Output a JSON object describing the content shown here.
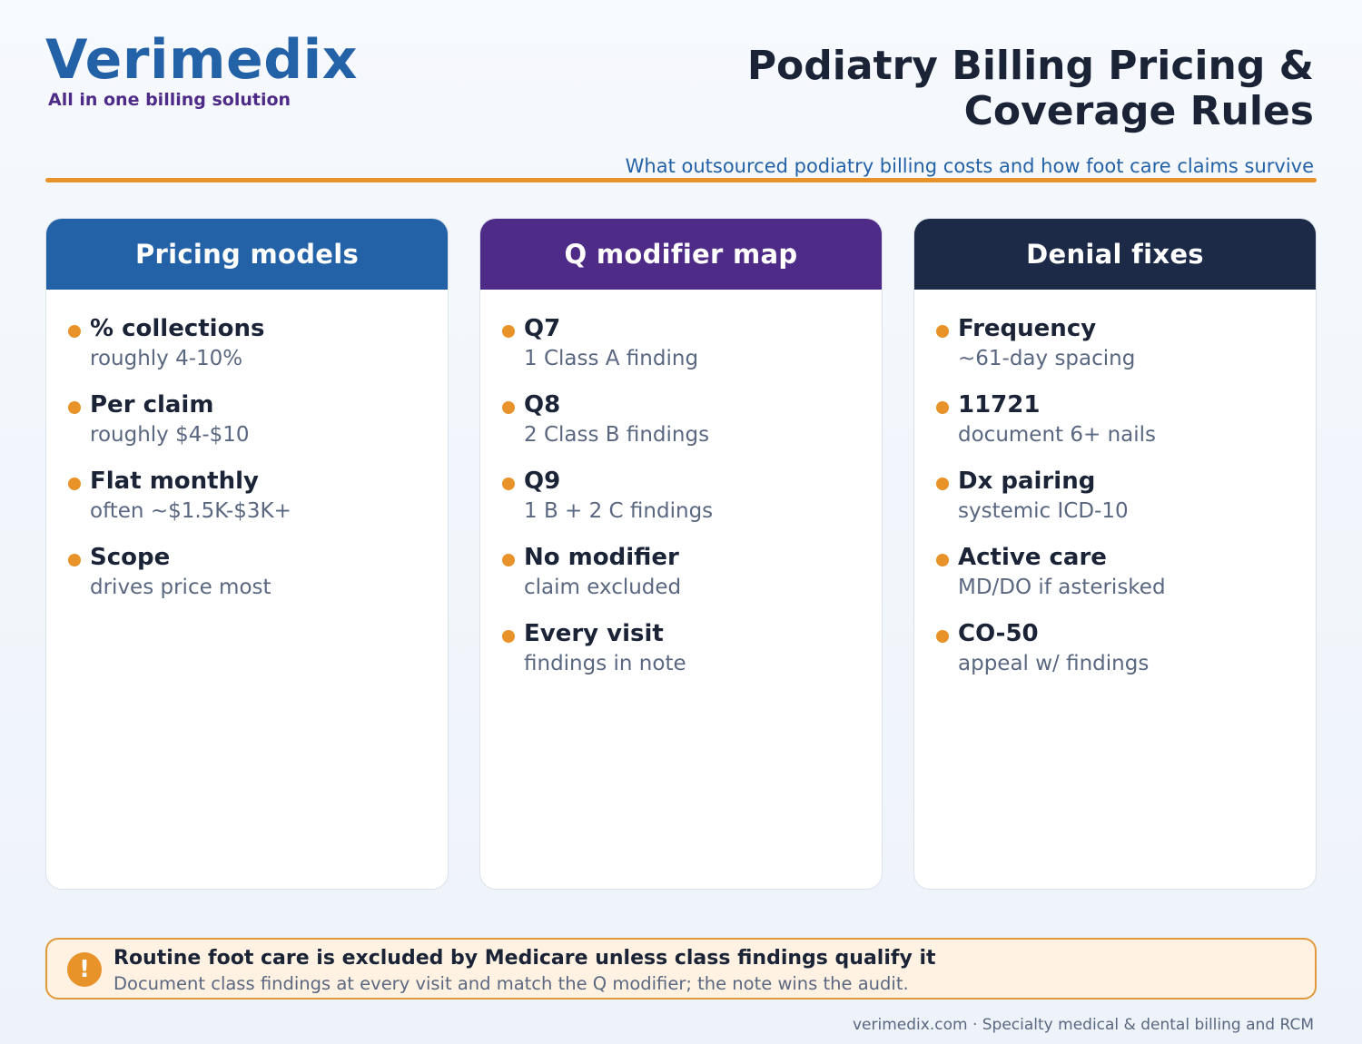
{
  "brand": {
    "name": "Verimedix",
    "tagline": "All in one billing solution"
  },
  "header": {
    "title_line1": "Podiatry Billing Pricing &",
    "title_line2": "Coverage Rules",
    "subtitle": "What outsourced podiatry billing costs and how foot care claims survive"
  },
  "colors": {
    "brand_blue": "#2462a8",
    "brand_purple": "#4e2b86",
    "navy": "#1c2a48",
    "accent_orange": "#e8922a"
  },
  "cards": [
    {
      "title": "Pricing models",
      "items": [
        {
          "label": "% collections",
          "detail": "roughly 4-10%"
        },
        {
          "label": "Per claim",
          "detail": "roughly $4-$10"
        },
        {
          "label": "Flat monthly",
          "detail": "often ~$1.5K-$3K+"
        },
        {
          "label": "Scope",
          "detail": "drives price most"
        }
      ]
    },
    {
      "title": "Q modifier map",
      "items": [
        {
          "label": "Q7",
          "detail": "1 Class A finding"
        },
        {
          "label": "Q8",
          "detail": "2 Class B findings"
        },
        {
          "label": "Q9",
          "detail": "1 B + 2 C findings"
        },
        {
          "label": "No modifier",
          "detail": "claim excluded"
        },
        {
          "label": "Every visit",
          "detail": "findings in note"
        }
      ]
    },
    {
      "title": "Denial fixes",
      "items": [
        {
          "label": "Frequency",
          "detail": "~61-day spacing"
        },
        {
          "label": "11721",
          "detail": "document 6+ nails"
        },
        {
          "label": "Dx pairing",
          "detail": "systemic ICD-10"
        },
        {
          "label": "Active care",
          "detail": "MD/DO if asterisked"
        },
        {
          "label": "CO-50",
          "detail": "appeal w/ findings"
        }
      ]
    }
  ],
  "callout": {
    "icon": "!",
    "title": "Routine foot care is excluded by Medicare unless class findings qualify it",
    "body": "Document class findings at every visit and match the Q modifier; the note wins the audit."
  },
  "footer": {
    "text": "verimedix.com · Specialty medical & dental billing and RCM"
  }
}
